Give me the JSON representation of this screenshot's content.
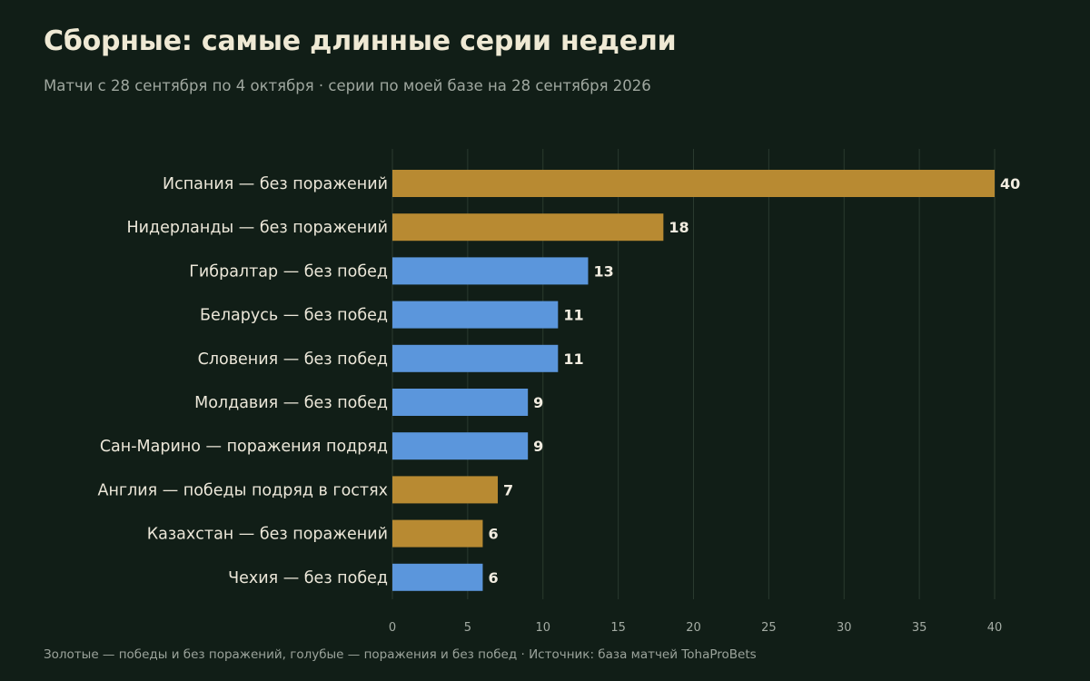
{
  "header": {
    "title": "Сборные: самые длинные серии недели",
    "subtitle": "Матчи с 28 сентября по 4 октября · серии по моей базе на 28 сентября 2026"
  },
  "footer": {
    "text": "Золотые — победы и без поражений, голубые — поражения и без побед · Источник: база матчей TohaProBets"
  },
  "colors": {
    "background": "#111e17",
    "gold": "#b88a32",
    "blue": "#5b96dc",
    "grid": "#2a3a2f"
  },
  "chart_data": {
    "type": "bar",
    "orientation": "horizontal",
    "title": "Сборные: самые длинные серии недели",
    "subtitle": "Матчи с 28 сентября по 4 октября · серии по моей базе на 28 сентября 2026",
    "categories": [
      "Испания — без поражений",
      "Нидерланды — без поражений",
      "Гибралтар — без побед",
      "Беларусь — без побед",
      "Словения — без побед",
      "Молдавия — без побед",
      "Сан-Марино — поражения подряд",
      "Англия — победы подряд в гостях",
      "Казахстан — без поражений",
      "Чехия — без побед"
    ],
    "values": [
      40,
      18,
      13,
      11,
      11,
      9,
      9,
      7,
      6,
      6
    ],
    "bar_colors": [
      "gold",
      "gold",
      "blue",
      "blue",
      "blue",
      "blue",
      "blue",
      "gold",
      "gold",
      "blue"
    ],
    "xlim": [
      0,
      40
    ],
    "xticks": [
      0,
      5,
      10,
      15,
      20,
      25,
      30,
      35,
      40
    ],
    "xlabel": "",
    "ylabel": "",
    "grid": "vertical",
    "data_labels": true
  }
}
